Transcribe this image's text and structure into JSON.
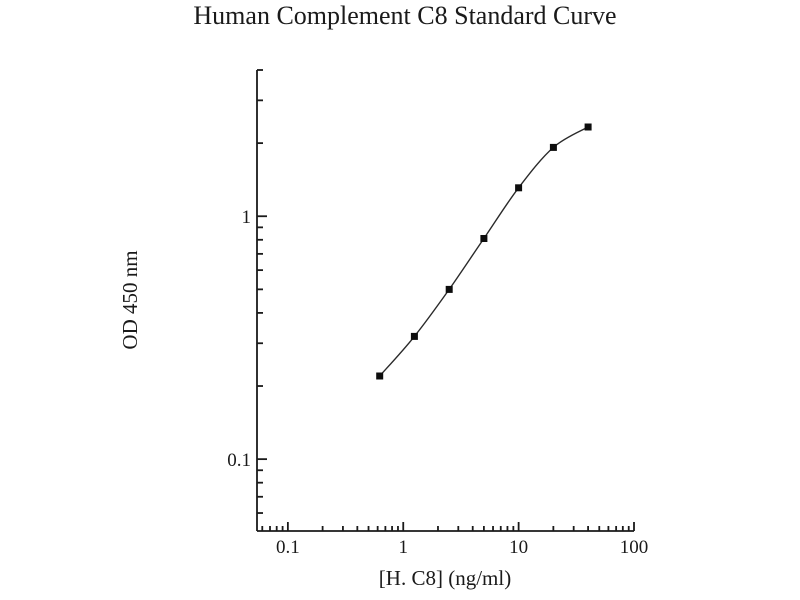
{
  "figure": {
    "title": "Human Complement C8 Standard Curve",
    "x_axis_label": "[H. C8] (ng/ml)",
    "y_axis_label": "OD 450 nm"
  },
  "chart_data": {
    "type": "line",
    "title": "Human Complement C8 Standard Curve",
    "xlabel": "[H. C8] (ng/ml)",
    "ylabel": "OD 450 nm",
    "x_scale": "log",
    "y_scale": "log",
    "xlim": [
      0.054,
      100
    ],
    "ylim": [
      0.0506,
      4
    ],
    "x_major_ticks": [
      0.1,
      1,
      10,
      100
    ],
    "x_major_tick_labels": [
      "0.1",
      "1",
      "10",
      "100"
    ],
    "y_major_ticks": [
      0.1,
      1
    ],
    "y_major_tick_labels": [
      "0.1",
      "1"
    ],
    "grid": false,
    "legend": "none",
    "series": [
      {
        "name": "Human Complement C8 standard",
        "x": [
          0.625,
          1.25,
          2.5,
          5,
          10,
          20,
          40
        ],
        "y": [
          0.22,
          0.32,
          0.5,
          0.81,
          1.31,
          1.92,
          2.33
        ],
        "marker": "square",
        "marker_color": "#0d0d0d",
        "line_color": "#2a2a2a"
      }
    ]
  },
  "colors": {
    "background": "#ffffff",
    "axis": "#1a1a1a",
    "text": "#1a1a1a"
  }
}
